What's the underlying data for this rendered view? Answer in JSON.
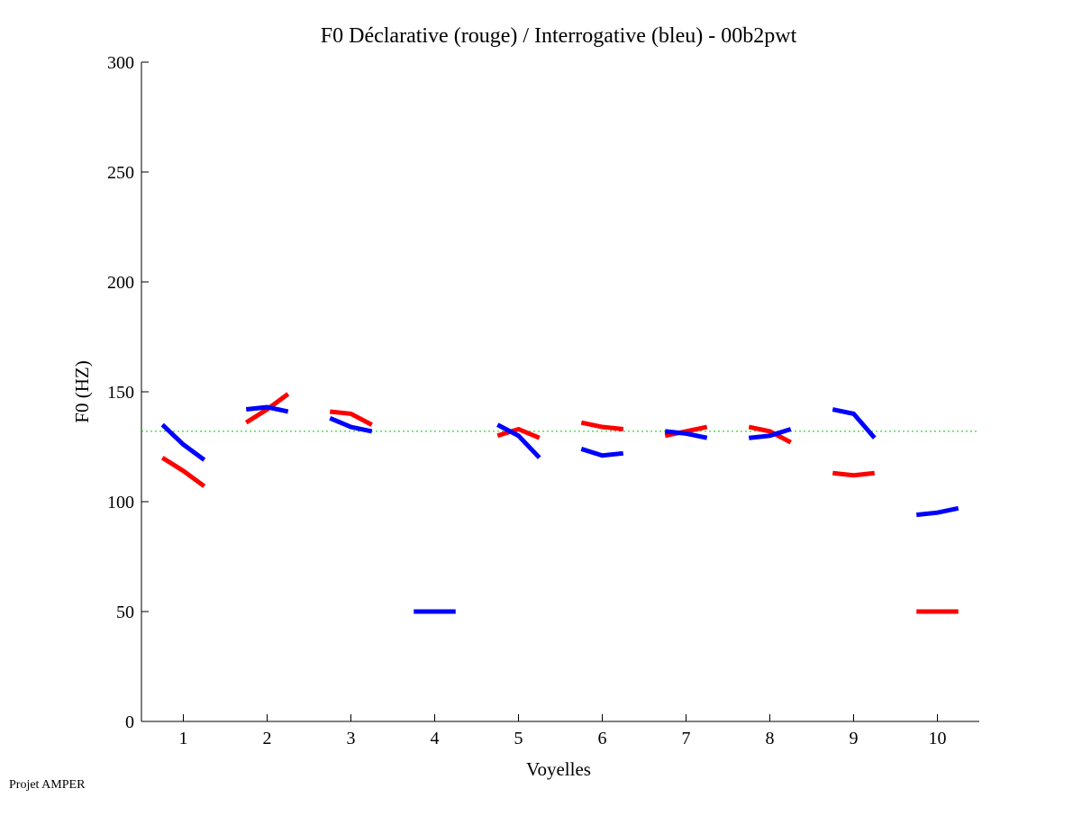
{
  "chart_data": {
    "type": "line",
    "title": "F0 Déclarative (rouge) / Interrogative (bleu) - 00b2pwt",
    "xlabel": "Voyelles",
    "ylabel": "F0 (HZ)",
    "ylim": [
      0,
      300
    ],
    "xlim": [
      0.5,
      10.5
    ],
    "yticks": [
      0,
      50,
      100,
      150,
      200,
      250,
      300
    ],
    "xticks": [
      1,
      2,
      3,
      4,
      5,
      6,
      7,
      8,
      9,
      10
    ],
    "reference_line": {
      "value": 132,
      "color": "#00cc00",
      "style": "dotted"
    },
    "series": [
      {
        "name": "Déclarative (rouge)",
        "color": "#ff0000",
        "segments": [
          [
            120,
            114,
            107
          ],
          [
            136,
            142,
            149
          ],
          [
            141,
            140,
            135
          ],
          null,
          [
            130,
            133,
            129
          ],
          [
            136,
            134,
            133
          ],
          [
            130,
            132,
            134
          ],
          [
            134,
            132,
            127
          ],
          [
            113,
            112,
            113
          ],
          [
            50,
            50,
            50
          ]
        ]
      },
      {
        "name": "Interrogative (bleu)",
        "color": "#0000ff",
        "segments": [
          [
            135,
            126,
            119
          ],
          [
            142,
            143,
            141
          ],
          [
            138,
            134,
            132
          ],
          [
            50,
            50,
            50
          ],
          [
            135,
            130,
            120
          ],
          [
            124,
            121,
            122
          ],
          [
            132,
            131,
            129
          ],
          [
            129,
            130,
            133
          ],
          [
            142,
            140,
            129
          ],
          [
            94,
            95,
            97
          ]
        ]
      }
    ]
  },
  "footer": "Projet AMPER"
}
